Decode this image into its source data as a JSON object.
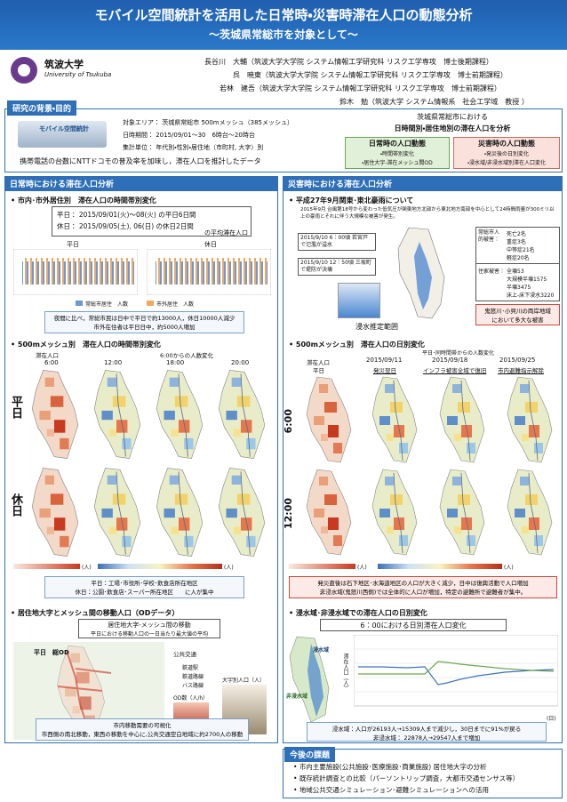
{
  "header": {
    "title": "モバイル空間統計を活用した日常時・災害時滞在人口の動態分析",
    "subtitle": "〜茨城県常総市を対象として〜"
  },
  "logo": {
    "name": "筑波大学",
    "en": "University of Tsukuba"
  },
  "authors": [
    "長谷川　大輔（筑波大学大学院 システム情報工学研究科 リスク工学専攻　博士後期課程）",
    "呉　暁東（筑波大学大学院 システム情報工学研究科 リスク工学専攻　博士前期課程）",
    "若林　建吾（筑波大学大学院 システム情報工学研究科 リスク工学専攻　博士前期課程）",
    "鈴木　勉（筑波大学 システム情報系　社会工学域　教授 ）"
  ],
  "background": {
    "heading": "研究の背景・目的",
    "items": [
      "対象エリア： 茨城県常総市 500mメッシュ（385メッシュ）",
      "日時期間： 2015/09/01〜30　6時台〜20時台",
      "集計単位： 年代別・性別・居住地（市町村, 大字）別"
    ],
    "data_logo": "モバイル空間統計",
    "summary": "携帯電話の台数にNTTドコモの普及率を加味し，滞在人口を推計したデータ",
    "purpose": [
      "茨城県常総市における",
      "日時間別・居住地別の滞在人口を分析"
    ],
    "normal": {
      "title": "日常時の人口動態",
      "items": [
        "・時間帯別変化",
        "・居住大字-滞在メッシュ間OD"
      ]
    },
    "disaster": {
      "title": "災害時の人口動態",
      "items": [
        "・発災後の日別変化",
        "・浸水域/非浸水域別滞在人口変化"
      ]
    }
  },
  "normal": {
    "heading": "日常時における滞在人口分析",
    "sec1": {
      "title": "• 市内･市外居住別　滞在人口の時間帯別変化",
      "period": [
        "平日： 2015/09/01(火)〜08(火) の平日6日間",
        "休日： 2015/09/05(土), 06(日) の休日2日間",
        "の平均滞在人口"
      ],
      "chart_titles": [
        "平日",
        "休日"
      ],
      "legend": [
        "常総市居住　人数",
        "市外居住　人数"
      ],
      "note": [
        "夜間に比べ，常総市民は日中で平日で約13000人，休日10000人減少",
        "市外在住者は平日日中，約5000人増加"
      ]
    },
    "sec2": {
      "title": "• 500mメッシュ別　滞在人口の時間帯別変化",
      "col_labels": [
        "滞在人口",
        "6:00からの人数変化"
      ],
      "times": [
        "6:00",
        "12:00",
        "18:00",
        "20:00"
      ],
      "rows": [
        "平日",
        "休日"
      ],
      "unit": "(人)",
      "note": [
        "平日：工場･市役所･学校･飲食店所在地区",
        "休日：公園･飲食店･スーパー所在地区　　に人が集中"
      ]
    },
    "sec3": {
      "title": "• 居住地大字とメッシュ間の移動人口（ODデータ）",
      "box": [
        "居住地大字-メッシュ間の移動",
        "平日における移動人口の一日当たり最大値の平均"
      ],
      "map_title": "平日　総OD",
      "legend": [
        "公共交通",
        "鉄道駅",
        "鉄道路線",
        "バス路線",
        "OD数（人/h）",
        "大字別人口（人）"
      ],
      "note": [
        "市内移動需要の可視化",
        "市西側の南北移動，東西の移動を中心に,公共交通空白地域に約2700人の移動"
      ]
    }
  },
  "disaster": {
    "heading": "災害時における滞在人口分析",
    "sec1": {
      "title": "• 平成27年9月関東･東北豪雨について",
      "para": "2015年9月 台風第18号から変わった低気圧が関東地方北部から東北地方南部を中心として24時間雨量が300ミリ以上の豪雨とそれに伴う大規模な被害が発生。",
      "callouts": [
        "2015/9/10 6：00頃 若宮戸で氾濫が溢水",
        "2015/9/10 12：50頃 三坂町で堤防が決壊"
      ],
      "damage": [
        {
          "label": "常総市人的被害：",
          "items": [
            "死亡2名",
            "重症3名",
            "中等症21名",
            "軽症20名"
          ]
        },
        {
          "label": "住家被害：",
          "items": [
            "全壊53",
            "大規模半壊1575",
            "半壊3475",
            "床上-床下浸水3220"
          ]
        }
      ],
      "map_caption": "浸水推定範囲",
      "note": [
        "鬼怒川･小貝川の両岸地域",
        "において多大な被害"
      ]
    },
    "sec2": {
      "title": "• 500mメッシュ別　滞在人口の日別変化",
      "subtitle": "平日･同時間帯からの人数変化",
      "base": [
        "滞在人口",
        "平日"
      ],
      "dates": [
        "2015/09/11",
        "2015/09/18",
        "2015/09/25"
      ],
      "events": [
        "発災翌日",
        "インフラ被害全域で復旧",
        "市内避難指示解除"
      ],
      "rows": [
        "6:00",
        "12:00"
      ],
      "unit": "(人)",
      "note": [
        "発災直後は石下地区･水海道地区の人口が大きく減少，日中は復興活動で人口増加",
        "非浸水域(鬼怒川西側)では全体的に人口が増加，特定の避難所で避難者が集中。"
      ]
    },
    "sec3": {
      "title": "• 浸水域･非浸水域での滞在人口の日別変化",
      "box": "6：00における日別滞在人口変化",
      "map_labels": [
        "浸水域",
        "非浸水域"
      ],
      "y_label": "滞在人口（人）",
      "x_label": "(日)",
      "note": [
        "浸水域：人口が26193人→15309人まで減少し，30日までに91%が戻る",
        "非浸水域： 22878人→29547人まで増加"
      ]
    }
  },
  "future": {
    "heading": "今後の課題",
    "items": [
      "市内主要施設(公共施設･医療施設･商業施設) 居住地大字の分析",
      "既存統計調査との比較（パーソントリップ調査，大都市交通センサス等）",
      "地域公共交通シミュレーション･避難シミュレーションへの活用"
    ]
  }
}
